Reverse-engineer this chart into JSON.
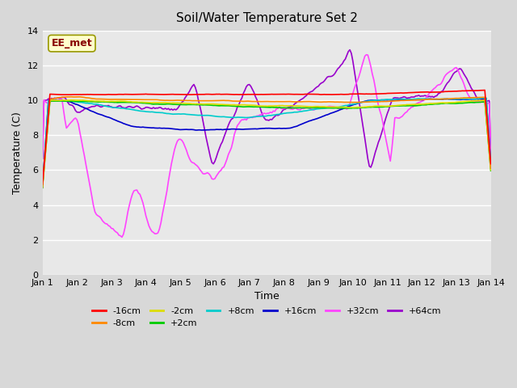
{
  "title": "Soil/Water Temperature Set 2",
  "xlabel": "Time",
  "ylabel": "Temperature (C)",
  "xlim": [
    0,
    13
  ],
  "ylim": [
    0,
    14
  ],
  "yticks": [
    0,
    2,
    4,
    6,
    8,
    10,
    12,
    14
  ],
  "xtick_labels": [
    "Jan 1",
    "Jan 2",
    "Jan 3",
    "Jan 4",
    "Jan 5",
    "Jan 6",
    "Jan 7",
    "Jan 8",
    "Jan 9",
    "Jan 10",
    "Jan 11",
    "Jan 12",
    "Jan 13",
    "Jan 14"
  ],
  "background_color": "#e8e8e8",
  "axes_face_color": "#e8e8e8",
  "grid_color": "#ffffff",
  "label_box": "EE_met",
  "label_box_bg": "#ffffcc",
  "label_box_border": "#999900",
  "label_box_text_color": "#880000",
  "series": {
    "-16cm": {
      "color": "#ff0000",
      "zorder": 8
    },
    "-8cm": {
      "color": "#ff8800",
      "zorder": 7
    },
    "-2cm": {
      "color": "#dddd00",
      "zorder": 6
    },
    "+2cm": {
      "color": "#00cc00",
      "zorder": 5
    },
    "+8cm": {
      "color": "#00cccc",
      "zorder": 4
    },
    "+16cm": {
      "color": "#0000cc",
      "zorder": 3
    },
    "+32cm": {
      "color": "#ff44ff",
      "zorder": 2
    },
    "+64cm": {
      "color": "#9900cc",
      "zorder": 1
    }
  },
  "n_points": 300
}
